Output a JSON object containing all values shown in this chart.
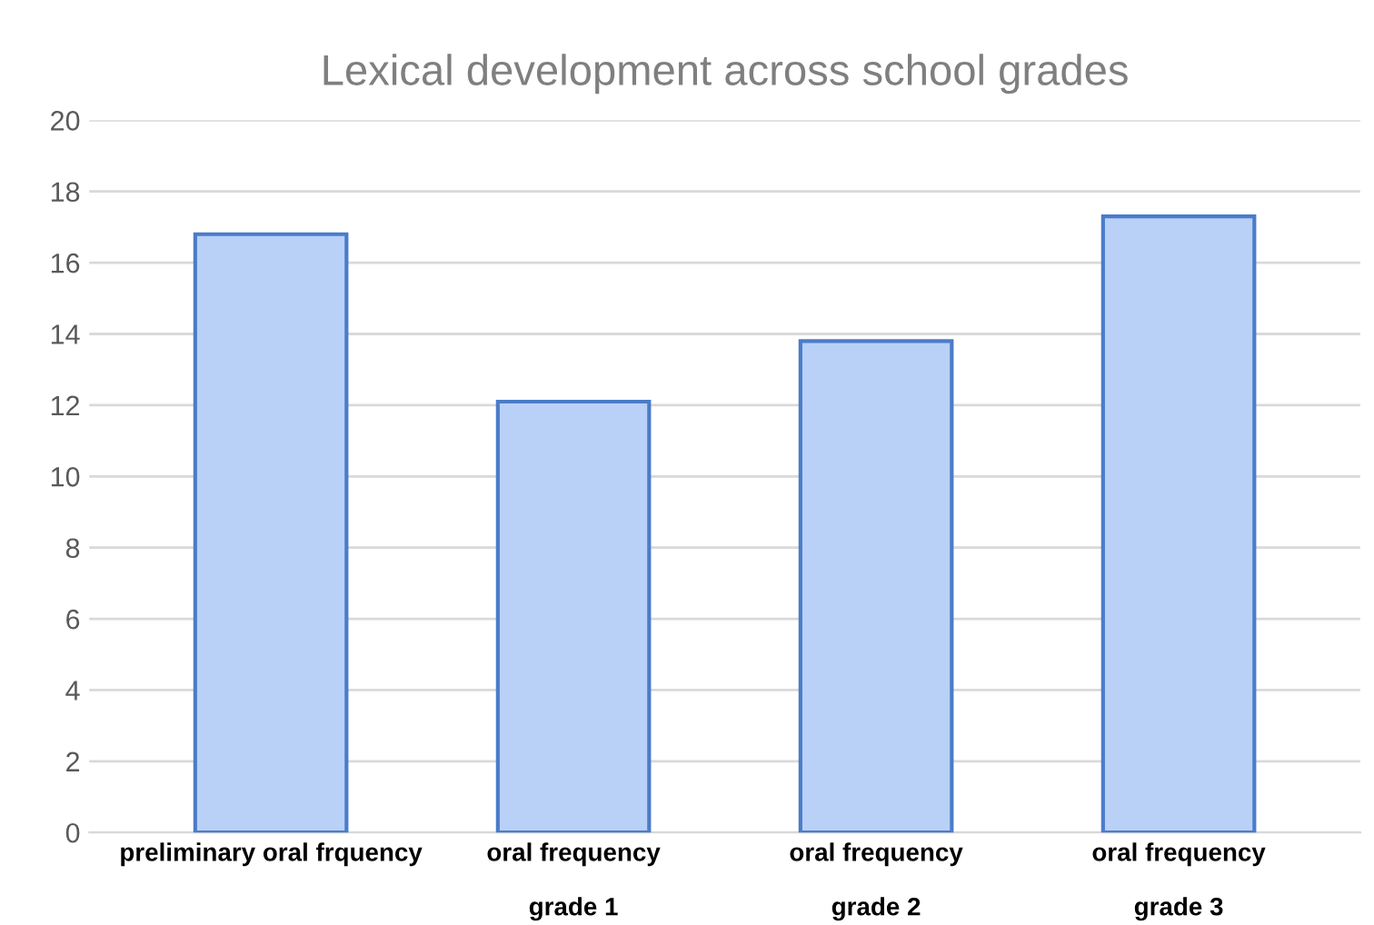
{
  "chart_data": {
    "type": "bar",
    "title": "Lexical development across school grades",
    "categories": [
      "preliminary oral frquency",
      "oral frequency\n\ngrade 1",
      "oral frequency\n\ngrade 2",
      "oral frequency\n\ngrade 3"
    ],
    "values": [
      16.8,
      12.1,
      13.8,
      17.3
    ],
    "color": "#b9d0f7",
    "ylim": [
      0,
      20
    ],
    "yticks": [
      0,
      2,
      4,
      6,
      8,
      10,
      12,
      14,
      16,
      18,
      20
    ],
    "grid": "y",
    "legend": false
  }
}
